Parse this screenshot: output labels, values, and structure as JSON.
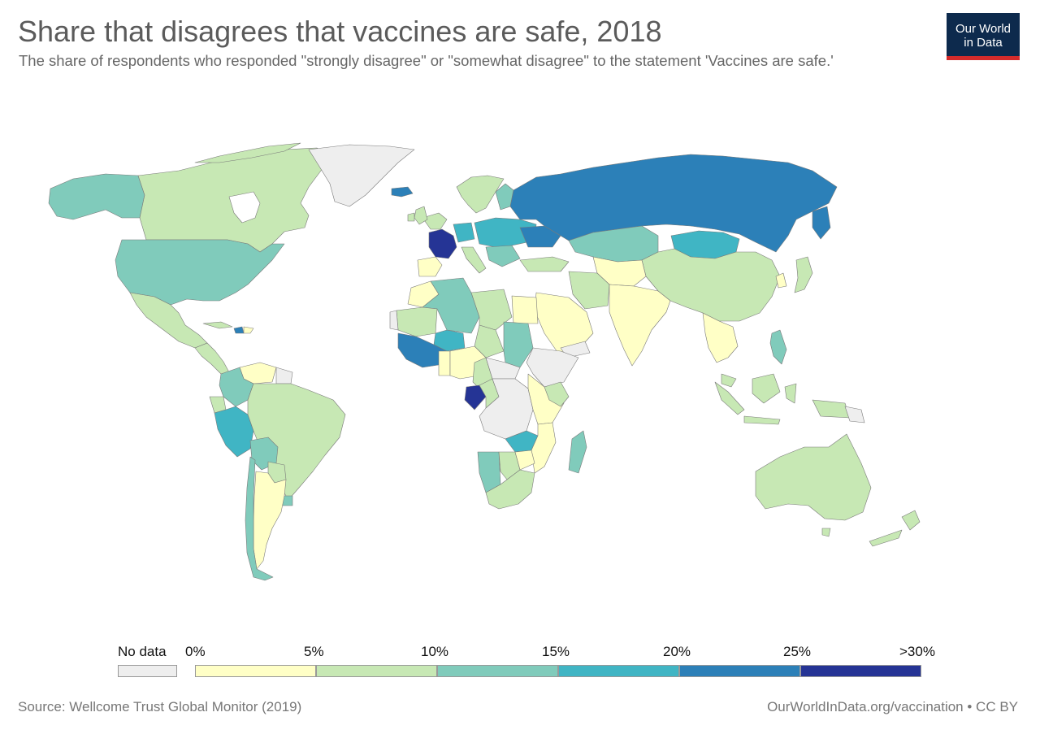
{
  "header": {
    "title": "Share that disagrees that vaccines are safe, 2018",
    "subtitle": "The share of respondents who responded \"strongly disagree\" or \"somewhat disagree\" to the statement 'Vaccines are safe.'"
  },
  "logo": {
    "line1": "Our World",
    "line2": "in Data",
    "bg_color": "#0d2a4d",
    "accent_color": "#d42b2b"
  },
  "legend": {
    "no_data_label": "No data",
    "no_data_color": "#eeeeee",
    "bins": [
      {
        "from_label": "0%",
        "to_label": "5%",
        "color": "#ffffc6"
      },
      {
        "from_label": "5%",
        "to_label": "10%",
        "color": "#c7e8b4"
      },
      {
        "from_label": "10%",
        "to_label": "15%",
        "color": "#80cbbb"
      },
      {
        "from_label": "15%",
        "to_label": "20%",
        "color": "#40b5c4"
      },
      {
        "from_label": "20%",
        "to_label": "25%",
        "color": "#2c80b8"
      },
      {
        "from_label": "25%",
        "to_label": ">30%",
        "color": "#253495"
      }
    ],
    "tick_labels": [
      "0%",
      "5%",
      "10%",
      "15%",
      "20%",
      "25%",
      ">30%"
    ]
  },
  "map_data": {
    "type": "choropleth",
    "metric": "Share that disagrees that vaccines are safe",
    "year": 2018,
    "regions": [
      {
        "name": "Alaska",
        "color": "#80cbbb"
      },
      {
        "name": "Canada",
        "color": "#c7e8b4"
      },
      {
        "name": "Greenland",
        "color": "#eeeeee"
      },
      {
        "name": "United States",
        "color": "#80cbbb"
      },
      {
        "name": "Mexico",
        "color": "#c7e8b4"
      },
      {
        "name": "Central America",
        "color": "#c7e8b4"
      },
      {
        "name": "Haiti",
        "color": "#2c80b8"
      },
      {
        "name": "Venezuela",
        "color": "#ffffc6"
      },
      {
        "name": "Colombia",
        "color": "#80cbbb"
      },
      {
        "name": "Peru",
        "color": "#40b5c4"
      },
      {
        "name": "Brazil",
        "color": "#c7e8b4"
      },
      {
        "name": "Bolivia",
        "color": "#80cbbb"
      },
      {
        "name": "Paraguay",
        "color": "#c7e8b4"
      },
      {
        "name": "Argentina",
        "color": "#ffffc6"
      },
      {
        "name": "Chile",
        "color": "#80cbbb"
      },
      {
        "name": "France",
        "color": "#253495"
      },
      {
        "name": "Iceland",
        "color": "#2c80b8"
      },
      {
        "name": "Scandinavia",
        "color": "#c7e8b4"
      },
      {
        "name": "Russia",
        "color": "#2c80b8"
      },
      {
        "name": "Kazakhstan",
        "color": "#80cbbb"
      },
      {
        "name": "Mongolia",
        "color": "#40b5c4"
      },
      {
        "name": "China",
        "color": "#c7e8b4"
      },
      {
        "name": "India",
        "color": "#ffffc6"
      },
      {
        "name": "Middle East",
        "color": "#ffffc6"
      },
      {
        "name": "North Africa",
        "color": "#c7e8b4"
      },
      {
        "name": "Algeria / Niger",
        "color": "#80cbbb"
      },
      {
        "name": "Mali",
        "color": "#40b5c4"
      },
      {
        "name": "West Africa",
        "color": "#2c80b8"
      },
      {
        "name": "Gabon",
        "color": "#253495"
      },
      {
        "name": "Central Africa",
        "color": "#eeeeee"
      },
      {
        "name": "East Africa",
        "color": "#ffffc6"
      },
      {
        "name": "Southern Africa",
        "color": "#c7e8b4"
      },
      {
        "name": "Madagascar",
        "color": "#80cbbb"
      },
      {
        "name": "Southeast Asia",
        "color": "#ffffc6"
      },
      {
        "name": "Philippines",
        "color": "#80cbbb"
      },
      {
        "name": "Indonesia",
        "color": "#c7e8b4"
      },
      {
        "name": "Japan",
        "color": "#c7e8b4"
      },
      {
        "name": "Australia",
        "color": "#c7e8b4"
      },
      {
        "name": "New Zealand",
        "color": "#c7e8b4"
      }
    ]
  },
  "footer": {
    "source": "Source: Wellcome Trust Global Monitor (2019)",
    "credit": "OurWorldInData.org/vaccination • CC BY"
  }
}
